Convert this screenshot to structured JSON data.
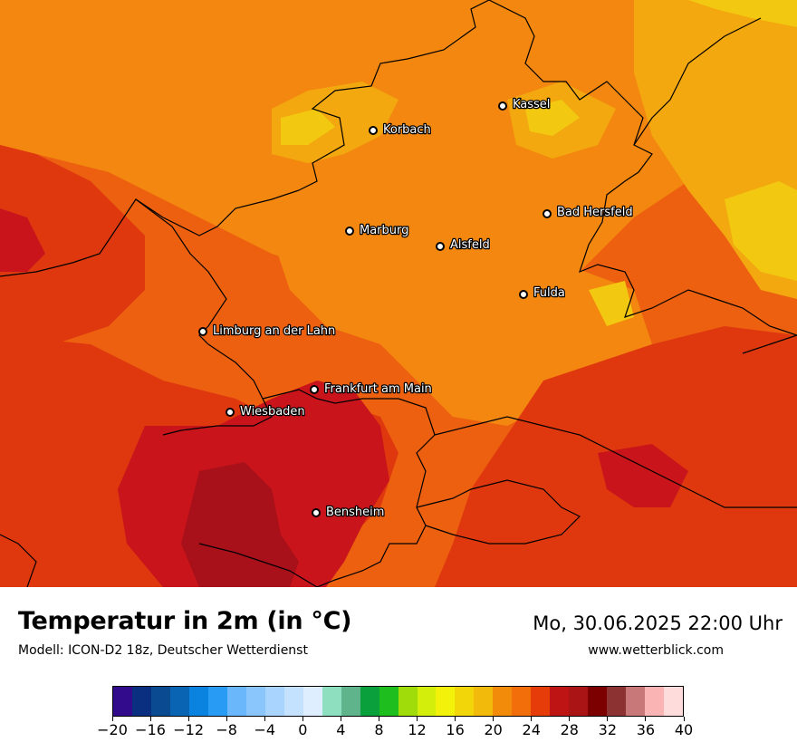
{
  "map": {
    "cities": [
      {
        "name": "Kassel",
        "id": "kassel"
      },
      {
        "name": "Korbach",
        "id": "korbach"
      },
      {
        "name": "Bad Hersfeld",
        "id": "bad-hersfeld"
      },
      {
        "name": "Marburg",
        "id": "marburg"
      },
      {
        "name": "Alsfeld",
        "id": "alsfeld"
      },
      {
        "name": "Fulda",
        "id": "fulda"
      },
      {
        "name": "Limburg an der Lahn",
        "id": "limburg"
      },
      {
        "name": "Frankfurt am Main",
        "id": "frankfurt"
      },
      {
        "name": "Wiesbaden",
        "id": "wiesbaden"
      },
      {
        "name": "Bensheim",
        "id": "bensheim"
      }
    ],
    "fill_colors": {
      "deep_red": "#a8101a",
      "red": "#c8141a",
      "red_orange": "#e0380e",
      "orange": "#ec6010",
      "light_orange": "#f3870f",
      "amber": "#f3a80f",
      "yellow": "#f2c810",
      "border": "#000000"
    }
  },
  "header": {
    "title": "Temperatur in 2m (in °C)",
    "subtitle": "Modell: ICON-D2 18z, Deutscher Wetterdienst",
    "datetime": "Mo, 30.06.2025 22:00 Uhr",
    "website": "www.wetterblick.com"
  },
  "legend": {
    "unit": "°C",
    "min": -20,
    "max": 40,
    "colors": [
      "#320a8c",
      "#0a2f80",
      "#0a4a90",
      "#0a64b4",
      "#0a82e0",
      "#289bf5",
      "#6ab8fb",
      "#8ac6fc",
      "#a8d4fd",
      "#c4e2fe",
      "#deeefe",
      "#8edec0",
      "#5fb48c",
      "#0aa03c",
      "#1ebe1e",
      "#a0dc0a",
      "#d2ee0a",
      "#f2f20a",
      "#f2d60a",
      "#f2ba0a",
      "#f28a0a",
      "#f26e0a",
      "#e63c0a",
      "#be1414",
      "#aa1414",
      "#7d0000",
      "#8c3232",
      "#c87878",
      "#fab4b4",
      "#ffdcdc"
    ],
    "ticks": [
      "−20",
      "−16",
      "−12",
      "−8",
      "−4",
      "0",
      "4",
      "8",
      "12",
      "16",
      "20",
      "24",
      "28",
      "32",
      "36",
      "40"
    ]
  }
}
